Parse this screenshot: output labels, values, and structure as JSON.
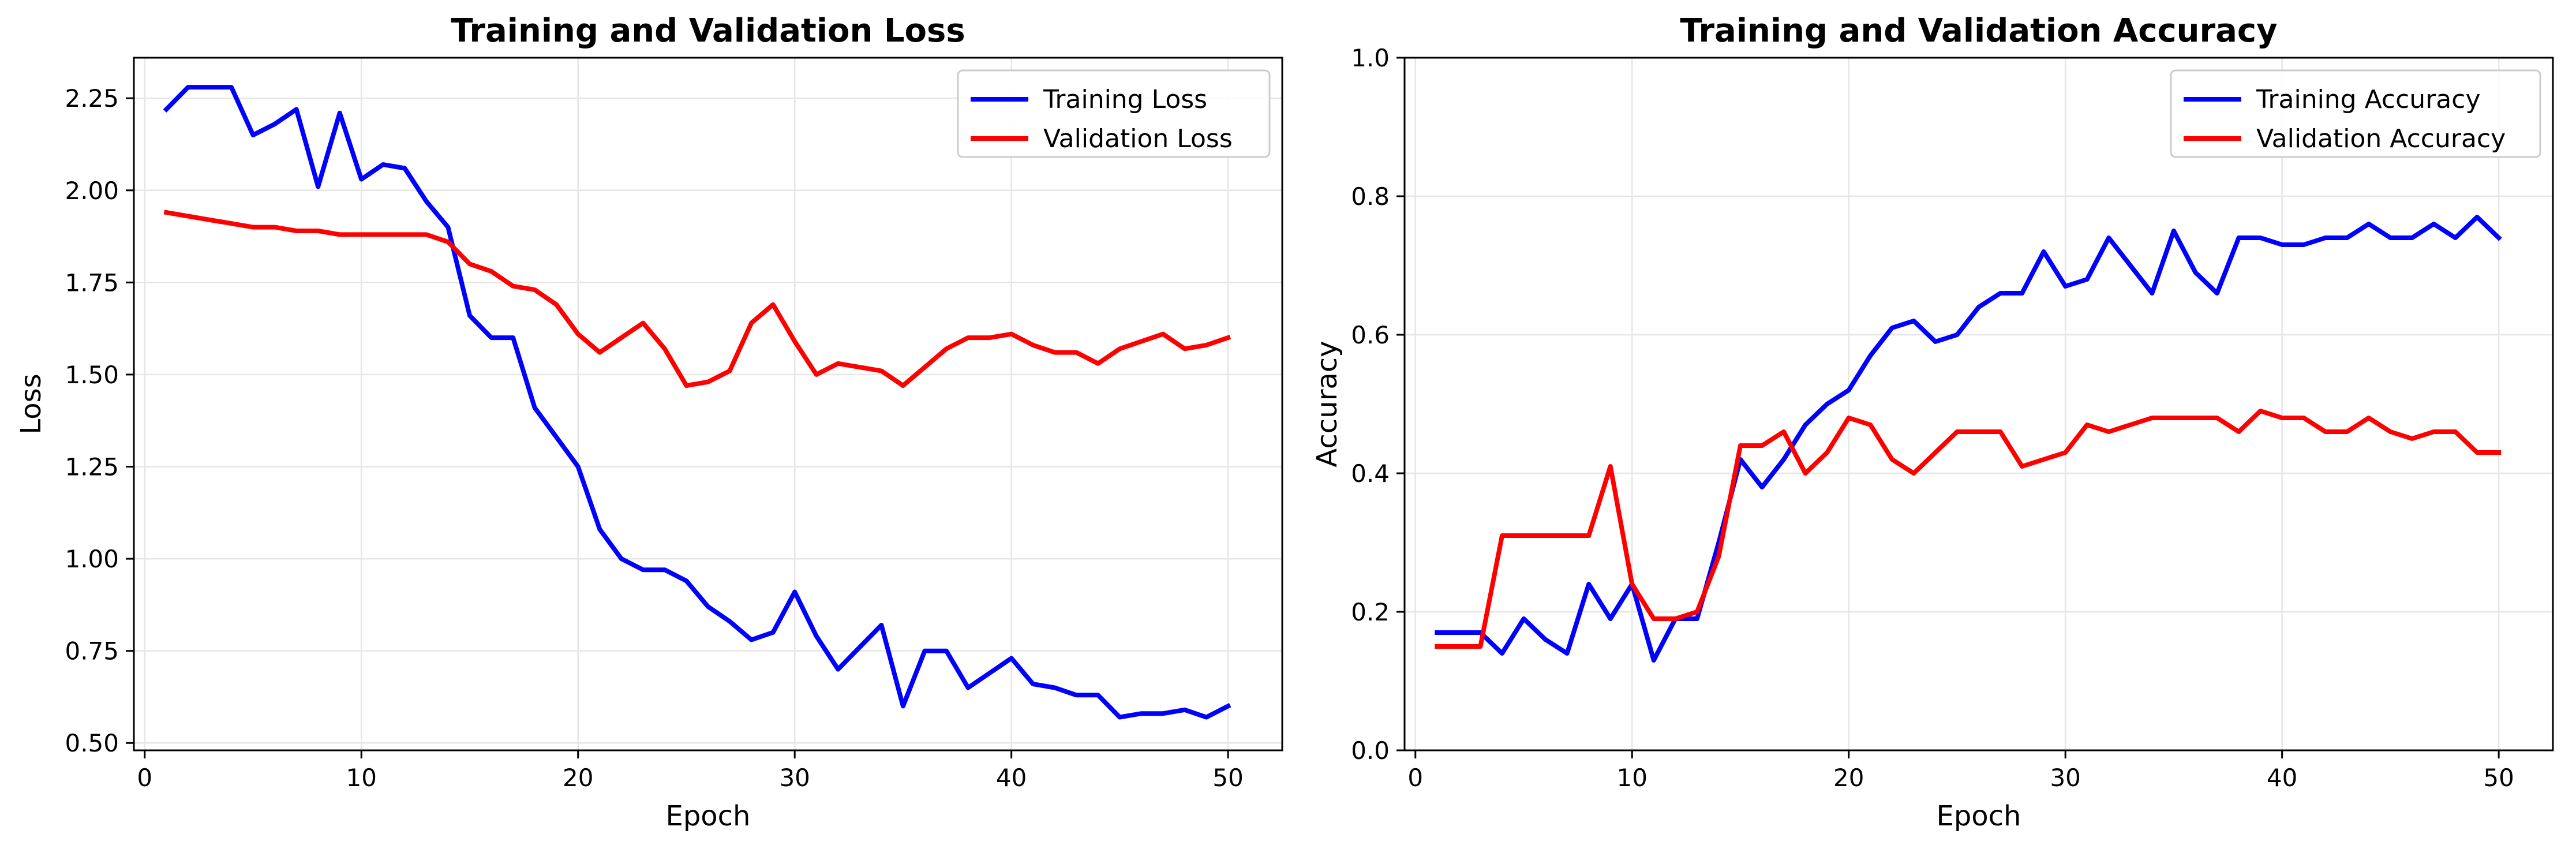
{
  "chart_data": [
    {
      "type": "line",
      "title": "Training and Validation Loss",
      "xlabel": "Epoch",
      "ylabel": "Loss",
      "xlim": [
        -0.5,
        52.5
      ],
      "ylim": [
        0.48,
        2.36
      ],
      "xticks": [
        0,
        10,
        20,
        30,
        40,
        50
      ],
      "yticks": [
        0.5,
        0.75,
        1.0,
        1.25,
        1.5,
        1.75,
        2.0,
        2.25
      ],
      "ytick_labels": [
        "0.50",
        "0.75",
        "1.00",
        "1.25",
        "1.50",
        "1.75",
        "2.00",
        "2.25"
      ],
      "grid": true,
      "legend_position": "upper-right",
      "x": [
        1,
        2,
        3,
        4,
        5,
        6,
        7,
        8,
        9,
        10,
        11,
        12,
        13,
        14,
        15,
        16,
        17,
        18,
        19,
        20,
        21,
        22,
        23,
        24,
        25,
        26,
        27,
        28,
        29,
        30,
        31,
        32,
        33,
        34,
        35,
        36,
        37,
        38,
        39,
        40,
        41,
        42,
        43,
        44,
        45,
        46,
        47,
        48,
        49,
        50
      ],
      "series": [
        {
          "name": "Training Loss",
          "color": "#0000ff",
          "values": [
            2.22,
            2.28,
            2.28,
            2.28,
            2.15,
            2.18,
            2.22,
            2.01,
            2.21,
            2.03,
            2.07,
            2.06,
            1.97,
            1.9,
            1.66,
            1.6,
            1.6,
            1.41,
            1.33,
            1.25,
            1.08,
            1.0,
            0.97,
            0.97,
            0.94,
            0.87,
            0.83,
            0.78,
            0.8,
            0.91,
            0.79,
            0.7,
            0.76,
            0.82,
            0.6,
            0.75,
            0.75,
            0.65,
            0.69,
            0.73,
            0.66,
            0.65,
            0.63,
            0.63,
            0.57,
            0.58,
            0.58,
            0.59,
            0.57,
            0.6
          ]
        },
        {
          "name": "Validation Loss",
          "color": "#ff0000",
          "values": [
            1.94,
            1.93,
            1.92,
            1.91,
            1.9,
            1.9,
            1.89,
            1.89,
            1.88,
            1.88,
            1.88,
            1.88,
            1.88,
            1.86,
            1.8,
            1.78,
            1.74,
            1.73,
            1.69,
            1.61,
            1.56,
            1.6,
            1.64,
            1.57,
            1.47,
            1.48,
            1.51,
            1.64,
            1.69,
            1.59,
            1.5,
            1.53,
            1.52,
            1.51,
            1.47,
            1.52,
            1.57,
            1.6,
            1.6,
            1.61,
            1.58,
            1.56,
            1.56,
            1.53,
            1.57,
            1.59,
            1.61,
            1.57,
            1.58,
            1.6
          ]
        }
      ]
    },
    {
      "type": "line",
      "title": "Training and Validation Accuracy",
      "xlabel": "Epoch",
      "ylabel": "Accuracy",
      "xlim": [
        -0.5,
        52.5
      ],
      "ylim": [
        0.0,
        1.0
      ],
      "xticks": [
        0,
        10,
        20,
        30,
        40,
        50
      ],
      "yticks": [
        0.0,
        0.2,
        0.4,
        0.6,
        0.8,
        1.0
      ],
      "ytick_labels": [
        "0.0",
        "0.2",
        "0.4",
        "0.6",
        "0.8",
        "1.0"
      ],
      "grid": true,
      "legend_position": "upper-right",
      "x": [
        1,
        2,
        3,
        4,
        5,
        6,
        7,
        8,
        9,
        10,
        11,
        12,
        13,
        14,
        15,
        16,
        17,
        18,
        19,
        20,
        21,
        22,
        23,
        24,
        25,
        26,
        27,
        28,
        29,
        30,
        31,
        32,
        33,
        34,
        35,
        36,
        37,
        38,
        39,
        40,
        41,
        42,
        43,
        44,
        45,
        46,
        47,
        48,
        49,
        50
      ],
      "series": [
        {
          "name": "Training Accuracy",
          "color": "#0000ff",
          "values": [
            0.17,
            0.17,
            0.17,
            0.14,
            0.19,
            0.16,
            0.14,
            0.24,
            0.19,
            0.24,
            0.13,
            0.19,
            0.19,
            0.3,
            0.42,
            0.38,
            0.42,
            0.47,
            0.5,
            0.52,
            0.57,
            0.61,
            0.62,
            0.59,
            0.6,
            0.64,
            0.66,
            0.66,
            0.72,
            0.67,
            0.68,
            0.74,
            0.7,
            0.66,
            0.75,
            0.69,
            0.66,
            0.74,
            0.74,
            0.73,
            0.73,
            0.74,
            0.74,
            0.76,
            0.74,
            0.74,
            0.76,
            0.74,
            0.77,
            0.74
          ]
        },
        {
          "name": "Validation Accuracy",
          "color": "#ff0000",
          "values": [
            0.15,
            0.15,
            0.15,
            0.31,
            0.31,
            0.31,
            0.31,
            0.31,
            0.41,
            0.24,
            0.19,
            0.19,
            0.2,
            0.28,
            0.44,
            0.44,
            0.46,
            0.4,
            0.43,
            0.48,
            0.47,
            0.42,
            0.4,
            0.43,
            0.46,
            0.46,
            0.46,
            0.41,
            0.42,
            0.43,
            0.47,
            0.46,
            0.47,
            0.48,
            0.48,
            0.48,
            0.48,
            0.46,
            0.49,
            0.48,
            0.48,
            0.46,
            0.46,
            0.48,
            0.46,
            0.45,
            0.46,
            0.46,
            0.43,
            0.43
          ]
        }
      ]
    }
  ]
}
